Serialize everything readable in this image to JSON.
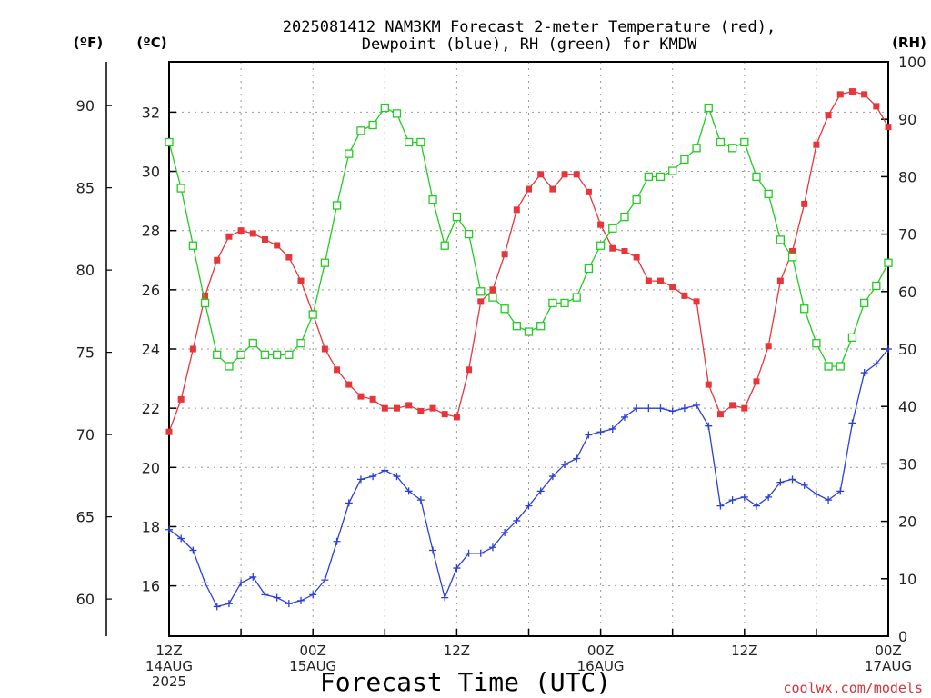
{
  "title_line1": "2025081412 NAM3KM Forecast 2-meter Temperature (red),",
  "title_line2": "Dewpoint (blue), RH (green) for KMDW",
  "units": {
    "fahrenheit": "(ºF)",
    "celsius": "(ºC)",
    "rh": "(RH)"
  },
  "xaxis_label": "Forecast Time (UTC)",
  "credit": "coolwx.com/models",
  "colors": {
    "temperature": "#e8353a",
    "dewpoint": "#2a3fd6",
    "rh": "#22cc22",
    "grid": "#999999"
  },
  "chart_data": {
    "type": "line",
    "title": "2025081412 NAM3KM Forecast 2-meter Temperature (red), Dewpoint (blue), RH (green) for KMDW",
    "xlabel": "Forecast Time (UTC)",
    "x": {
      "unit": "forecast hour from 2025-08-14 12Z",
      "start": 0,
      "step": 1,
      "count": 61
    },
    "x_tick_labels": [
      {
        "hour": 0,
        "lines": [
          "12Z",
          "14AUG",
          "2025"
        ]
      },
      {
        "hour": 12,
        "lines": [
          "00Z",
          "15AUG"
        ]
      },
      {
        "hour": 24,
        "lines": [
          "12Z"
        ]
      },
      {
        "hour": 36,
        "lines": [
          "00Z",
          "16AUG"
        ]
      },
      {
        "hour": 48,
        "lines": [
          "12Z"
        ]
      },
      {
        "hour": 60,
        "lines": [
          "00Z",
          "17AUG"
        ]
      }
    ],
    "y_celsius": {
      "label": "(ºC)",
      "range": [
        14.3,
        33.7
      ],
      "ticks": [
        16,
        18,
        20,
        22,
        24,
        26,
        28,
        30,
        32
      ]
    },
    "y_fahrenheit": {
      "label": "(ºF)",
      "ticks": [
        60,
        65,
        70,
        75,
        80,
        85,
        90
      ]
    },
    "y_rh": {
      "label": "(RH)",
      "range": [
        0,
        100
      ],
      "ticks": [
        0,
        10,
        20,
        30,
        40,
        50,
        60,
        70,
        80,
        90,
        100
      ]
    },
    "grid": true,
    "series": [
      {
        "name": "Temperature",
        "axis": "celsius",
        "marker": "filled-square",
        "values": [
          21.2,
          22.3,
          24.0,
          25.8,
          27.0,
          27.8,
          28.0,
          27.9,
          27.7,
          27.5,
          27.1,
          26.3,
          25.2,
          24.0,
          23.3,
          22.8,
          22.4,
          22.3,
          22.0,
          22.0,
          22.1,
          21.9,
          22.0,
          21.8,
          21.7,
          23.3,
          25.6,
          26.0,
          27.2,
          28.7,
          29.4,
          29.9,
          29.4,
          29.9,
          29.9,
          29.3,
          28.2,
          27.4,
          27.3,
          27.1,
          26.3,
          26.3,
          26.1,
          25.8,
          25.6,
          22.8,
          21.8,
          22.1,
          22.0,
          22.9,
          24.1,
          26.3,
          27.3,
          28.9,
          30.9,
          31.9,
          32.6,
          32.7,
          32.6,
          32.2,
          31.5
        ]
      },
      {
        "name": "Dewpoint",
        "axis": "celsius",
        "marker": "plus",
        "values": [
          17.9,
          17.6,
          17.2,
          16.1,
          15.3,
          15.4,
          16.1,
          16.3,
          15.7,
          15.6,
          15.4,
          15.5,
          15.7,
          16.2,
          17.5,
          18.8,
          19.6,
          19.7,
          19.9,
          19.7,
          19.2,
          18.9,
          17.2,
          15.6,
          16.6,
          17.1,
          17.1,
          17.3,
          17.8,
          18.2,
          18.7,
          19.2,
          19.7,
          20.1,
          20.3,
          21.1,
          21.2,
          21.3,
          21.7,
          22.0,
          22.0,
          22.0,
          21.9,
          22.0,
          22.1,
          21.4,
          18.7,
          18.9,
          19.0,
          18.7,
          19.0,
          19.5,
          19.6,
          19.4,
          19.1,
          18.9,
          19.2,
          21.5,
          23.2,
          23.5,
          24.0
        ]
      },
      {
        "name": "RH",
        "axis": "rh",
        "marker": "open-square",
        "values": [
          86,
          78,
          68,
          58,
          49,
          47,
          49,
          51,
          49,
          49,
          49,
          51,
          56,
          65,
          75,
          84,
          88,
          89,
          92,
          91,
          86,
          86,
          76,
          68,
          73,
          70,
          60,
          59,
          57,
          54,
          53,
          54,
          58,
          58,
          59,
          64,
          68,
          71,
          73,
          76,
          80,
          80,
          81,
          83,
          85,
          92,
          86,
          85,
          86,
          80,
          77,
          69,
          66,
          57,
          51,
          47,
          47,
          52,
          58,
          61,
          65
        ]
      }
    ]
  }
}
